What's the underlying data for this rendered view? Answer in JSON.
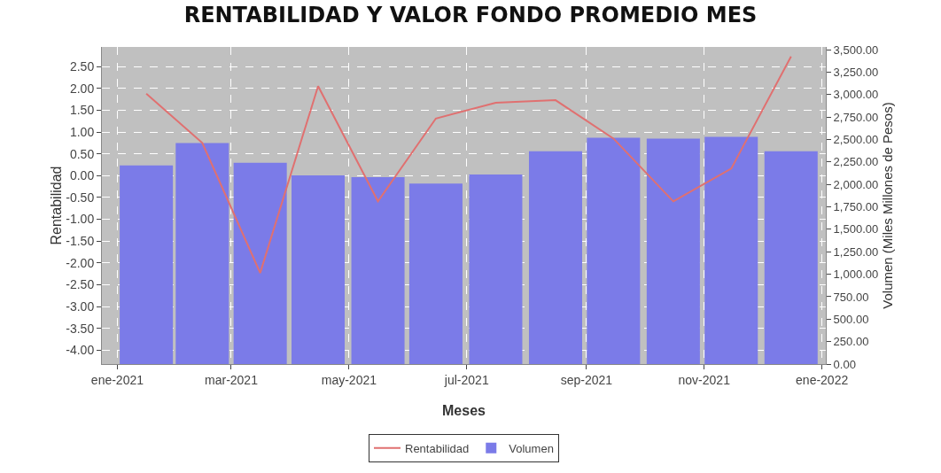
{
  "chart_data": {
    "type": "bar",
    "title": "RENTABILIDAD Y VALOR FONDO PROMEDIO MES",
    "xlabel": "Meses",
    "ylabel": "Rentabilidad",
    "y2label": "Volumen (Miles Millones de Pesos)",
    "x": [
      "2021-01-16",
      "2021-02-14",
      "2021-03-16",
      "2021-04-15",
      "2021-05-16",
      "2021-06-15",
      "2021-07-16",
      "2021-08-16",
      "2021-09-15",
      "2021-10-16",
      "2021-11-15",
      "2021-12-16"
    ],
    "series": [
      {
        "name": "Rentabilidad",
        "type": "line",
        "color": "#e07070",
        "values": [
          1.88,
          0.75,
          -2.23,
          2.05,
          -0.59,
          1.31,
          1.67,
          1.73,
          0.85,
          -0.59,
          0.16,
          2.73
        ]
      },
      {
        "name": "Volumen",
        "axis": "y2",
        "color": "#7b7be8",
        "values": [
          2210,
          2460,
          2240,
          2100,
          2080,
          2010,
          2110,
          2370,
          2520,
          2510,
          2530,
          2370
        ]
      }
    ],
    "xlim": [
      "2020-12-24",
      "2022-01-03"
    ],
    "xticks": [
      {
        "value": "2021-01-01",
        "label": "ene-2021"
      },
      {
        "value": "2021-03-01",
        "label": "mar-2021"
      },
      {
        "value": "2021-05-01",
        "label": "may-2021"
      },
      {
        "value": "2021-07-01",
        "label": "jul-2021"
      },
      {
        "value": "2021-09-01",
        "label": "sep-2021"
      },
      {
        "value": "2021-11-01",
        "label": "nov-2021"
      },
      {
        "value": "2022-01-01",
        "label": "ene-2022"
      }
    ],
    "ylim": [
      -4.32,
      2.95
    ],
    "yticks": [
      {
        "value": 2.5,
        "label": "2.50"
      },
      {
        "value": 2,
        "label": "2.00"
      },
      {
        "value": 1.5,
        "label": "1.50"
      },
      {
        "value": 1,
        "label": "1.00"
      },
      {
        "value": 0.5,
        "label": "0.50"
      },
      {
        "value": 0,
        "label": "0.00"
      },
      {
        "value": -0.5,
        "label": "-0.50"
      },
      {
        "value": -1,
        "label": "-1.00"
      },
      {
        "value": -1.5,
        "label": "-1.50"
      },
      {
        "value": -2,
        "label": "-2.00"
      },
      {
        "value": -2.5,
        "label": "-2.50"
      },
      {
        "value": -3,
        "label": "-3.00"
      },
      {
        "value": -3.5,
        "label": "-3.50"
      },
      {
        "value": -4,
        "label": "-4.00"
      }
    ],
    "y2lim": [
      0,
      3530
    ],
    "y2ticks": [
      {
        "value": 0,
        "label": "0.00"
      },
      {
        "value": 250,
        "label": "250.00"
      },
      {
        "value": 500,
        "label": "500.00"
      },
      {
        "value": 750,
        "label": "750.00"
      },
      {
        "value": 1000,
        "label": "1,000.00"
      },
      {
        "value": 1250,
        "label": "1,250.00"
      },
      {
        "value": 1500,
        "label": "1,500.00"
      },
      {
        "value": 1750,
        "label": "1,750.00"
      },
      {
        "value": 2000,
        "label": "2,000.00"
      },
      {
        "value": 2250,
        "label": "2,250.00"
      },
      {
        "value": 2500,
        "label": "2,500.00"
      },
      {
        "value": 2750,
        "label": "2,750.00"
      },
      {
        "value": 3000,
        "label": "3,000.00"
      },
      {
        "value": 3250,
        "label": "3,250.00"
      },
      {
        "value": 3500,
        "label": "3,500.00"
      }
    ],
    "grid": true,
    "legend": "bottom"
  }
}
